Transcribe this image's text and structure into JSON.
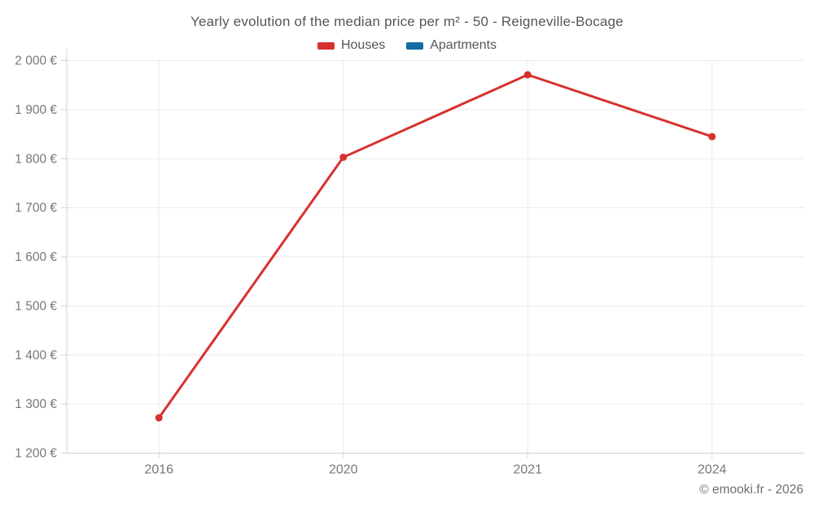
{
  "header": {
    "title": "Yearly evolution of the median price per m² - 50 - Reigneville-Bocage"
  },
  "legend": {
    "items": [
      {
        "label": "Houses",
        "color": "#d7312d"
      },
      {
        "label": "Apartments",
        "color": "#116ea0"
      }
    ]
  },
  "footer": {
    "text": "© emooki.fr - 2026"
  },
  "chart_data": {
    "type": "line",
    "title": "Yearly evolution of the median price per m² - 50 - Reigneville-Bocage",
    "categories": [
      "2016",
      "2020",
      "2021",
      "2024"
    ],
    "series": [
      {
        "name": "Houses",
        "color": "#d7312d",
        "values": [
          1272,
          1803,
          1971,
          1845
        ]
      },
      {
        "name": "Apartments",
        "color": "#116ea0",
        "values": []
      }
    ],
    "xlabel": "",
    "ylabel": "",
    "ylim": [
      1200,
      2000
    ],
    "yticks": [
      1200,
      1300,
      1400,
      1500,
      1600,
      1700,
      1800,
      1900,
      2000
    ],
    "ytick_labels": [
      "1 200 €",
      "1 300 €",
      "1 400 €",
      "1 500 €",
      "1 600 €",
      "1 700 €",
      "1 800 €",
      "1 900 €",
      "2 000 €"
    ],
    "grid": true,
    "legend_position": "top"
  }
}
